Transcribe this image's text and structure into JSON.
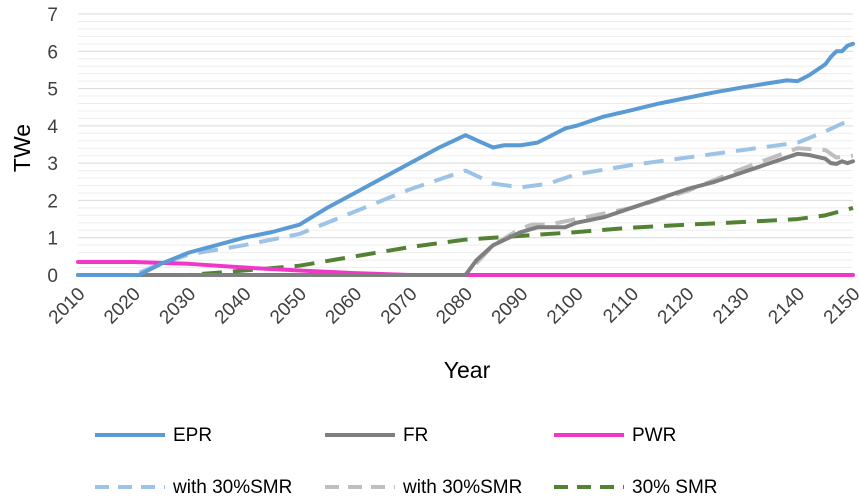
{
  "chart_data": {
    "type": "line",
    "title": "",
    "xlabel": "Year",
    "ylabel": "TWe",
    "xlim": [
      2010,
      2150
    ],
    "ylim": [
      0,
      7
    ],
    "x_ticks": [
      "2010",
      "2020",
      "2030",
      "2040",
      "2050",
      "2060",
      "2070",
      "2080",
      "2090",
      "2100",
      "2110",
      "2120",
      "2130",
      "2140",
      "2150"
    ],
    "y_ticks": [
      "0",
      "1",
      "2",
      "3",
      "4",
      "5",
      "6",
      "7"
    ],
    "grid": "horizontal major and minor",
    "legend_position": "bottom",
    "series": [
      {
        "name": "EPR",
        "style": "solid",
        "color": "#5B9BD5",
        "points": [
          [
            2010,
            0
          ],
          [
            2021,
            0
          ],
          [
            2025,
            0.3
          ],
          [
            2030,
            0.6
          ],
          [
            2035,
            0.8
          ],
          [
            2040,
            1.0
          ],
          [
            2045,
            1.15
          ],
          [
            2050,
            1.35
          ],
          [
            2055,
            1.8
          ],
          [
            2060,
            2.2
          ],
          [
            2065,
            2.6
          ],
          [
            2070,
            3.0
          ],
          [
            2075,
            3.4
          ],
          [
            2080,
            3.75
          ],
          [
            2083,
            3.55
          ],
          [
            2085,
            3.42
          ],
          [
            2087,
            3.48
          ],
          [
            2090,
            3.48
          ],
          [
            2093,
            3.55
          ],
          [
            2095,
            3.7
          ],
          [
            2098,
            3.93
          ],
          [
            2100,
            4.0
          ],
          [
            2105,
            4.25
          ],
          [
            2110,
            4.42
          ],
          [
            2115,
            4.6
          ],
          [
            2120,
            4.75
          ],
          [
            2125,
            4.9
          ],
          [
            2130,
            5.03
          ],
          [
            2135,
            5.15
          ],
          [
            2138,
            5.22
          ],
          [
            2140,
            5.2
          ],
          [
            2142,
            5.35
          ],
          [
            2145,
            5.65
          ],
          [
            2146,
            5.85
          ],
          [
            2147,
            6.0
          ],
          [
            2148,
            6.0
          ],
          [
            2149,
            6.15
          ],
          [
            2150,
            6.2
          ]
        ]
      },
      {
        "name": "FR",
        "style": "solid",
        "color": "#7F7F7F",
        "points": [
          [
            2010,
            0
          ],
          [
            2080,
            0
          ],
          [
            2082,
            0.4
          ],
          [
            2085,
            0.8
          ],
          [
            2090,
            1.15
          ],
          [
            2093,
            1.28
          ],
          [
            2095,
            1.28
          ],
          [
            2098,
            1.28
          ],
          [
            2100,
            1.4
          ],
          [
            2105,
            1.55
          ],
          [
            2110,
            1.8
          ],
          [
            2115,
            2.05
          ],
          [
            2120,
            2.3
          ],
          [
            2125,
            2.5
          ],
          [
            2130,
            2.75
          ],
          [
            2135,
            3.0
          ],
          [
            2140,
            3.25
          ],
          [
            2142,
            3.22
          ],
          [
            2145,
            3.12
          ],
          [
            2146,
            3.0
          ],
          [
            2147,
            2.98
          ],
          [
            2148,
            3.05
          ],
          [
            2149,
            3.0
          ],
          [
            2150,
            3.05
          ]
        ]
      },
      {
        "name": "PWR",
        "style": "solid",
        "color": "#F037C8",
        "points": [
          [
            2010,
            0.35
          ],
          [
            2020,
            0.35
          ],
          [
            2030,
            0.3
          ],
          [
            2040,
            0.2
          ],
          [
            2050,
            0.12
          ],
          [
            2060,
            0.05
          ],
          [
            2070,
            0
          ],
          [
            2150,
            0
          ]
        ]
      },
      {
        "name": "with 30%SMR",
        "style": "dashed",
        "color": "#9DC3E6",
        "points": [
          [
            2010,
            0
          ],
          [
            2020,
            0
          ],
          [
            2025,
            0.3
          ],
          [
            2030,
            0.55
          ],
          [
            2040,
            0.8
          ],
          [
            2050,
            1.1
          ],
          [
            2060,
            1.7
          ],
          [
            2070,
            2.3
          ],
          [
            2080,
            2.8
          ],
          [
            2085,
            2.45
          ],
          [
            2090,
            2.35
          ],
          [
            2095,
            2.45
          ],
          [
            2100,
            2.7
          ],
          [
            2110,
            2.95
          ],
          [
            2120,
            3.15
          ],
          [
            2130,
            3.35
          ],
          [
            2140,
            3.55
          ],
          [
            2145,
            3.85
          ],
          [
            2150,
            4.2
          ]
        ]
      },
      {
        "name": "with 30%SMR",
        "style": "dashed",
        "color": "#BFBFBF",
        "points": [
          [
            2010,
            0
          ],
          [
            2080,
            0
          ],
          [
            2085,
            0.8
          ],
          [
            2090,
            1.25
          ],
          [
            2092,
            1.35
          ],
          [
            2095,
            1.35
          ],
          [
            2100,
            1.5
          ],
          [
            2110,
            1.8
          ],
          [
            2120,
            2.25
          ],
          [
            2130,
            2.85
          ],
          [
            2140,
            3.4
          ],
          [
            2145,
            3.35
          ],
          [
            2147,
            3.15
          ],
          [
            2150,
            3.2
          ]
        ]
      },
      {
        "name": "30% SMR",
        "style": "dashed",
        "color": "#548235",
        "points": [
          [
            2010,
            0
          ],
          [
            2030,
            0
          ],
          [
            2040,
            0.12
          ],
          [
            2050,
            0.25
          ],
          [
            2060,
            0.5
          ],
          [
            2070,
            0.75
          ],
          [
            2080,
            0.95
          ],
          [
            2090,
            1.05
          ],
          [
            2100,
            1.15
          ],
          [
            2110,
            1.27
          ],
          [
            2120,
            1.35
          ],
          [
            2130,
            1.42
          ],
          [
            2140,
            1.5
          ],
          [
            2145,
            1.6
          ],
          [
            2150,
            1.8
          ]
        ]
      }
    ]
  }
}
